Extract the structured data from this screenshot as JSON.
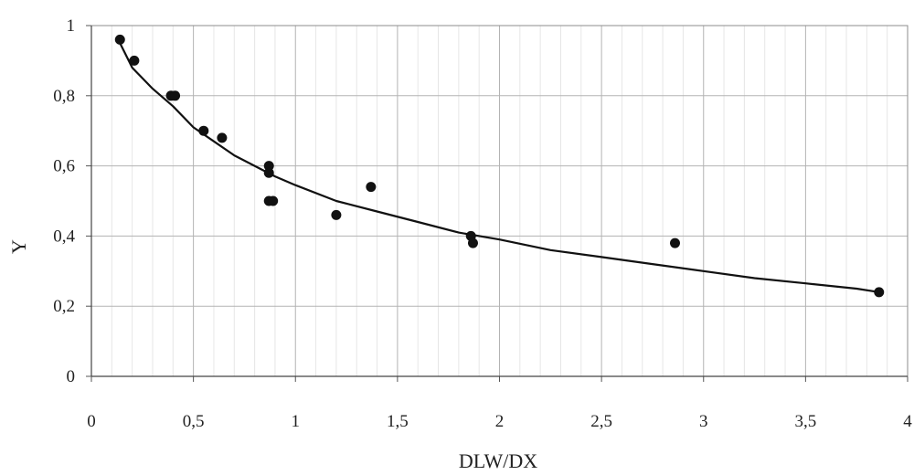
{
  "chart_data": {
    "type": "scatter",
    "xlabel": "DLW/DX",
    "ylabel": "Y",
    "xlim": [
      0,
      4
    ],
    "ylim": [
      0,
      1
    ],
    "x_ticks": [
      0,
      0.5,
      1,
      1.5,
      2,
      2.5,
      3,
      3.5,
      4
    ],
    "y_ticks": [
      0,
      0.2,
      0.4,
      0.6,
      0.8,
      1
    ],
    "x_tick_labels": [
      "0",
      "0,5",
      "1",
      "1,5",
      "2",
      "2,5",
      "3",
      "3,5",
      "4"
    ],
    "y_tick_labels": [
      "0",
      "0,2",
      "0,4",
      "0,6",
      "0,8",
      "1"
    ],
    "grid": true,
    "series": [
      {
        "type": "scatter",
        "x": [
          0.14,
          0.21,
          0.39,
          0.41,
          0.55,
          0.64,
          0.87,
          0.87,
          0.87,
          0.89,
          1.2,
          1.37,
          1.86,
          1.87,
          2.86,
          3.86
        ],
        "y": [
          0.96,
          0.9,
          0.8,
          0.8,
          0.7,
          0.68,
          0.6,
          0.58,
          0.5,
          0.5,
          0.46,
          0.54,
          0.4,
          0.38,
          0.38,
          0.24
        ]
      },
      {
        "type": "line",
        "x": [
          0.14,
          0.2,
          0.3,
          0.4,
          0.5,
          0.6,
          0.7,
          0.8,
          0.9,
          1.0,
          1.2,
          1.4,
          1.6,
          1.8,
          2.0,
          2.25,
          2.5,
          2.75,
          3.0,
          3.25,
          3.5,
          3.75,
          3.86
        ],
        "y": [
          0.95,
          0.88,
          0.82,
          0.77,
          0.71,
          0.67,
          0.63,
          0.6,
          0.57,
          0.545,
          0.5,
          0.47,
          0.44,
          0.41,
          0.39,
          0.36,
          0.34,
          0.32,
          0.3,
          0.28,
          0.265,
          0.25,
          0.24
        ]
      }
    ]
  }
}
